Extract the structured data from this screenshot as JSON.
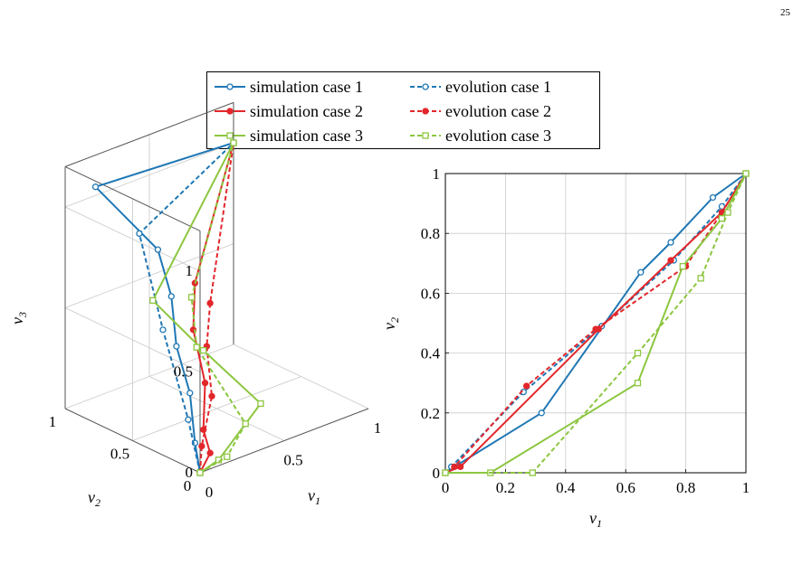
{
  "page_number": "25",
  "colors": {
    "case1": "#1f77b4",
    "case2": "#e3262b",
    "case3": "#8cc63f"
  },
  "legend": {
    "entries": [
      {
        "label": "simulation case 1",
        "color": "#1f77b4",
        "style": "solid",
        "marker": "circle"
      },
      {
        "label": "evolution case 1",
        "color": "#1f77b4",
        "style": "dashed",
        "marker": "circle"
      },
      {
        "label": "simulation case 2",
        "color": "#e3262b",
        "style": "solid",
        "marker": "filled-circle"
      },
      {
        "label": "evolution case 2",
        "color": "#e3262b",
        "style": "dashed",
        "marker": "filled-circle"
      },
      {
        "label": "simulation case 3",
        "color": "#8cc63f",
        "style": "solid",
        "marker": "square"
      },
      {
        "label": "evolution case 3",
        "color": "#8cc63f",
        "style": "dashed",
        "marker": "square"
      }
    ]
  },
  "chart_data": [
    {
      "type": "line3d",
      "xlabel": "v1",
      "ylabel": "v2",
      "zlabel": "v3",
      "x_ticks": [
        "0",
        "0.5",
        "1"
      ],
      "y_ticks": [
        "0",
        "0.5",
        "1"
      ],
      "z_ticks": [
        "0",
        "0.5",
        "1"
      ],
      "xlim": [
        0,
        1
      ],
      "ylim": [
        0,
        1
      ],
      "zlim": [
        0,
        1.2
      ],
      "grid": true,
      "series": [
        {
          "name": "simulation case 1",
          "style": "solid",
          "color": "#1f77b4",
          "marker": "circle",
          "points": [
            [
              0,
              0,
              0
            ],
            [
              0.05,
              0.1,
              0.1
            ],
            [
              0.1,
              0.2,
              0.3
            ],
            [
              0.1,
              0.3,
              0.5
            ],
            [
              0.15,
              0.4,
              0.7
            ],
            [
              0.15,
              0.5,
              0.9
            ],
            [
              0.1,
              0.9,
              1.1
            ],
            [
              1,
              1,
              1
            ]
          ]
        },
        {
          "name": "evolution case 1",
          "style": "dashed",
          "color": "#1f77b4",
          "marker": "circle",
          "points": [
            [
              0,
              0,
              0
            ],
            [
              0.05,
              0.15,
              0.2
            ],
            [
              0.1,
              0.4,
              0.55
            ],
            [
              0.2,
              0.7,
              0.9
            ],
            [
              1,
              1,
              1
            ]
          ]
        },
        {
          "name": "simulation case 2",
          "style": "solid",
          "color": "#e3262b",
          "marker": "filled-circle",
          "points": [
            [
              0,
              0,
              0
            ],
            [
              0.1,
              0.05,
              0.05
            ],
            [
              0.1,
              0.1,
              0.15
            ],
            [
              0.15,
              0.15,
              0.35
            ],
            [
              0.2,
              0.3,
              0.55
            ],
            [
              0.25,
              0.35,
              0.75
            ],
            [
              1,
              1,
              1
            ]
          ]
        },
        {
          "name": "evolution case 2",
          "style": "dashed",
          "color": "#e3262b",
          "marker": "filled-circle",
          "points": [
            [
              0,
              0,
              0
            ],
            [
              0.05,
              0.05,
              0.1
            ],
            [
              0.15,
              0.1,
              0.3
            ],
            [
              0.2,
              0.2,
              0.5
            ],
            [
              0.3,
              0.3,
              0.65
            ],
            [
              1,
              1,
              1
            ]
          ]
        },
        {
          "name": "simulation case 3",
          "style": "solid",
          "color": "#8cc63f",
          "marker": "square",
          "points": [
            [
              0,
              0,
              0
            ],
            [
              0.15,
              0.05,
              0
            ],
            [
              0.4,
              0.05,
              0.2
            ],
            [
              0.3,
              0.35,
              0.4
            ],
            [
              0.2,
              0.6,
              0.6
            ],
            [
              1,
              1,
              1
            ]
          ]
        },
        {
          "name": "evolution case 3",
          "style": "dashed",
          "color": "#8cc63f",
          "marker": "square",
          "points": [
            [
              0,
              0,
              0
            ],
            [
              0.2,
              0.05,
              0
            ],
            [
              0.35,
              0.1,
              0.1
            ],
            [
              0.3,
              0.4,
              0.4
            ],
            [
              0.35,
              0.5,
              0.6
            ],
            [
              1,
              1,
              1
            ]
          ]
        }
      ]
    },
    {
      "type": "line",
      "xlabel": "v1",
      "ylabel": "v2",
      "xlim": [
        0,
        1
      ],
      "ylim": [
        0,
        1
      ],
      "x_ticks": [
        0,
        0.2,
        0.4,
        0.6,
        0.8,
        1
      ],
      "y_ticks": [
        0,
        0.2,
        0.4,
        0.6,
        0.8,
        1
      ],
      "grid": true,
      "series": [
        {
          "name": "simulation case 1",
          "style": "solid",
          "color": "#1f77b4",
          "marker": "circle",
          "x": [
            0,
            0.03,
            0.32,
            0.65,
            0.75,
            0.89,
            1
          ],
          "y": [
            0,
            0.02,
            0.2,
            0.67,
            0.77,
            0.92,
            1
          ]
        },
        {
          "name": "evolution case 1",
          "style": "dashed",
          "color": "#1f77b4",
          "marker": "circle",
          "x": [
            0,
            0.02,
            0.26,
            0.52,
            0.76,
            0.92,
            1
          ],
          "y": [
            0,
            0.02,
            0.27,
            0.49,
            0.71,
            0.89,
            1
          ]
        },
        {
          "name": "simulation case 2",
          "style": "solid",
          "color": "#e3262b",
          "marker": "filled-circle",
          "x": [
            0,
            0.05,
            0.51,
            0.75,
            0.92,
            1
          ],
          "y": [
            0,
            0.02,
            0.48,
            0.71,
            0.87,
            1
          ]
        },
        {
          "name": "evolution case 2",
          "style": "dashed",
          "color": "#e3262b",
          "marker": "filled-circle",
          "x": [
            0,
            0.03,
            0.27,
            0.5,
            0.8,
            0.92,
            1
          ],
          "y": [
            0,
            0.02,
            0.29,
            0.48,
            0.69,
            0.87,
            1
          ]
        },
        {
          "name": "simulation case 3",
          "style": "solid",
          "color": "#8cc63f",
          "marker": "square",
          "x": [
            0,
            0.15,
            0.64,
            0.79,
            0.92,
            1
          ],
          "y": [
            0,
            0,
            0.3,
            0.69,
            0.85,
            1
          ]
        },
        {
          "name": "evolution case 3",
          "style": "dashed",
          "color": "#8cc63f",
          "marker": "square",
          "x": [
            0,
            0.29,
            0.64,
            0.85,
            0.94,
            1
          ],
          "y": [
            0,
            0,
            0.4,
            0.65,
            0.87,
            1
          ]
        }
      ]
    }
  ]
}
